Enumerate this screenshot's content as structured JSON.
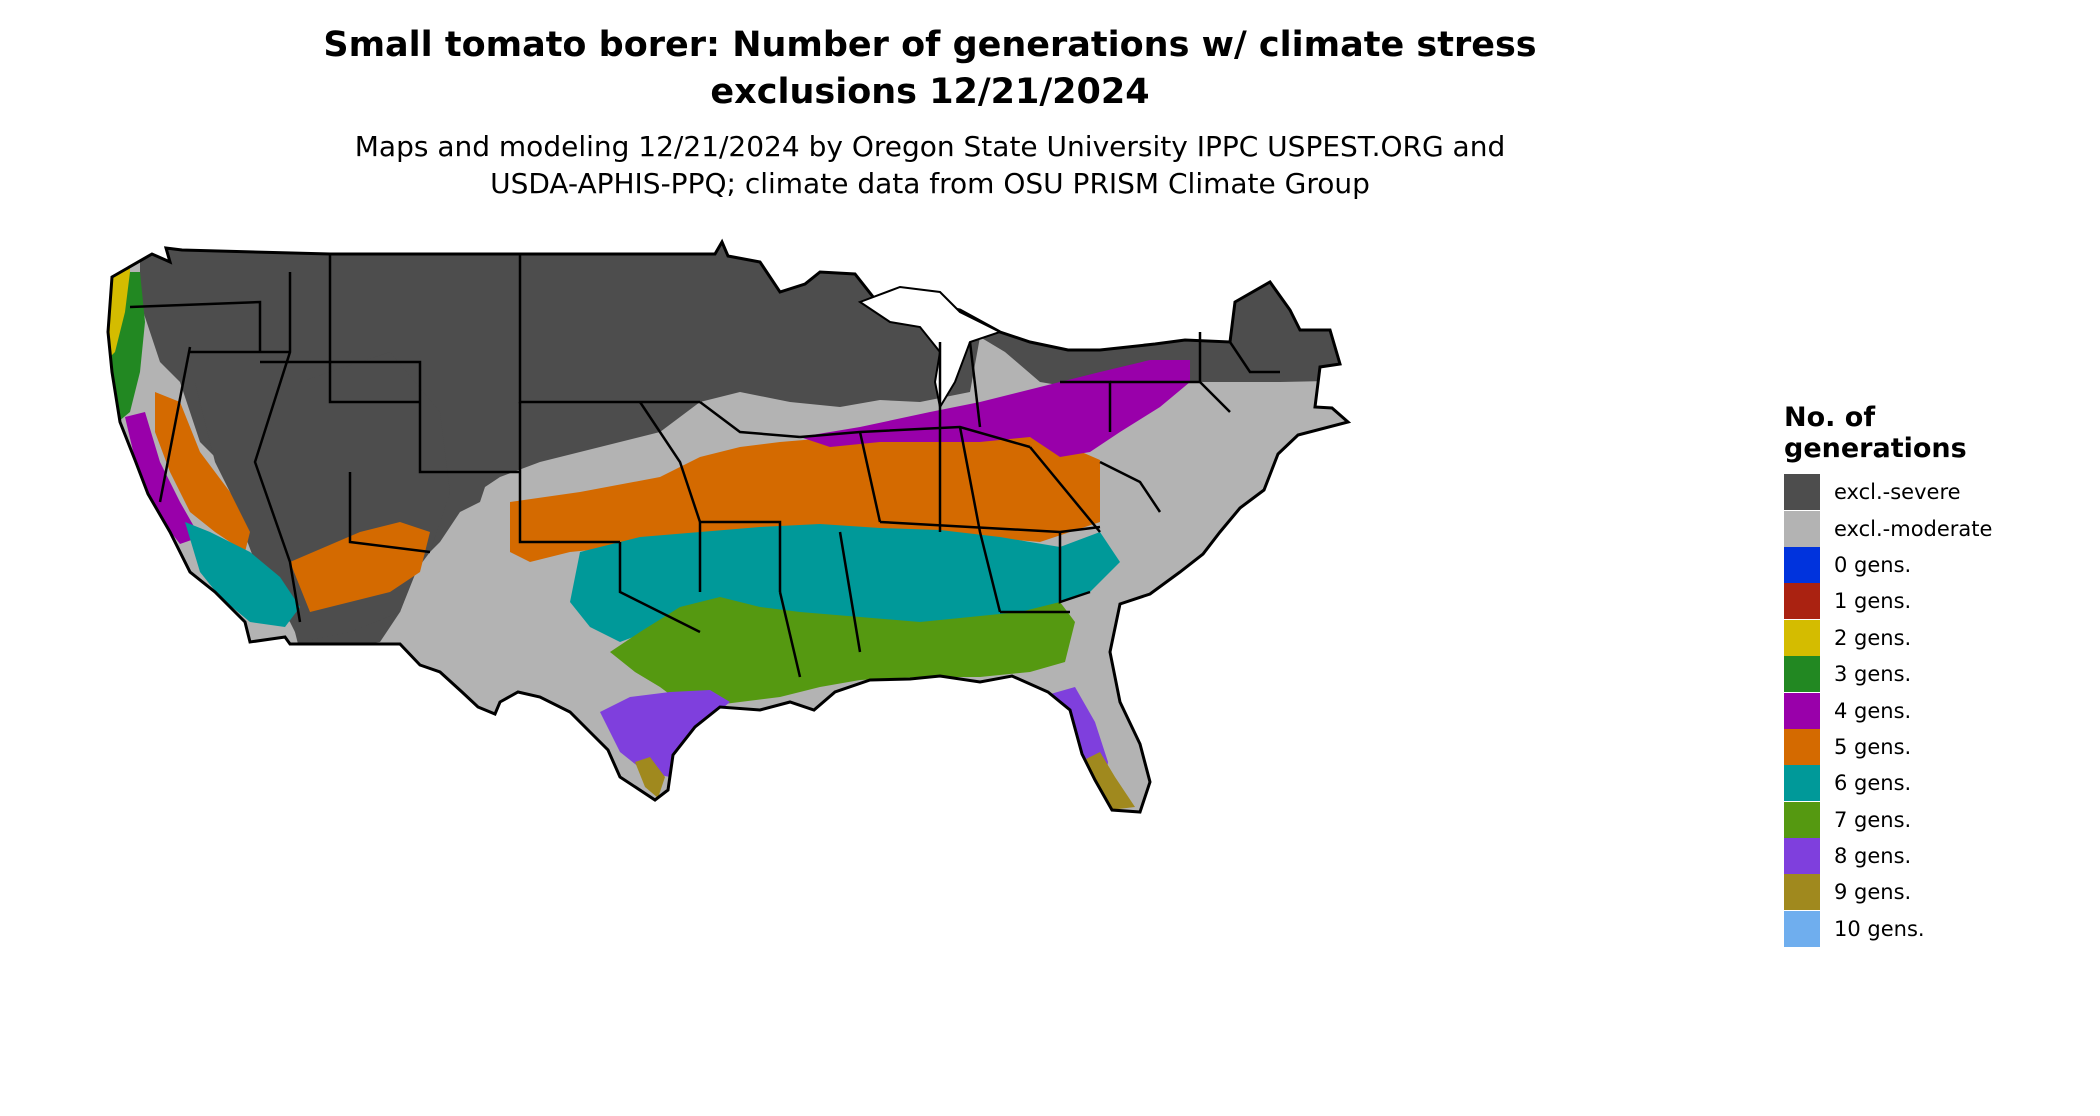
{
  "title_line1": "Small tomato borer: Number of generations w/ climate stress",
  "title_line2": "exclusions 12/21/2024",
  "subtitle_line1": "Maps and modeling 12/21/2024 by Oregon State University IPPC USPEST.ORG and",
  "subtitle_line2": "USDA-APHIS-PPQ; climate data from OSU PRISM Climate Group",
  "legend": {
    "title_line1": "No. of",
    "title_line2": "generations",
    "items": [
      {
        "label": "excl.-severe",
        "color": "#4d4d4d"
      },
      {
        "label": "excl.-moderate",
        "color": "#b3b3b3"
      },
      {
        "label": "0 gens.",
        "color": "#0033dd"
      },
      {
        "label": "1 gens.",
        "color": "#aa2211"
      },
      {
        "label": "2 gens.",
        "color": "#d4bc00"
      },
      {
        "label": "3 gens.",
        "color": "#228822"
      },
      {
        "label": "4 gens.",
        "color": "#9900aa"
      },
      {
        "label": "5 gens.",
        "color": "#d46a00"
      },
      {
        "label": "6 gens.",
        "color": "#009999"
      },
      {
        "label": "7 gens.",
        "color": "#559911"
      },
      {
        "label": "8 gens.",
        "color": "#7f3fdd"
      },
      {
        "label": "9 gens.",
        "color": "#a0891e"
      },
      {
        "label": "10 gens.",
        "color": "#6faeee"
      }
    ]
  }
}
